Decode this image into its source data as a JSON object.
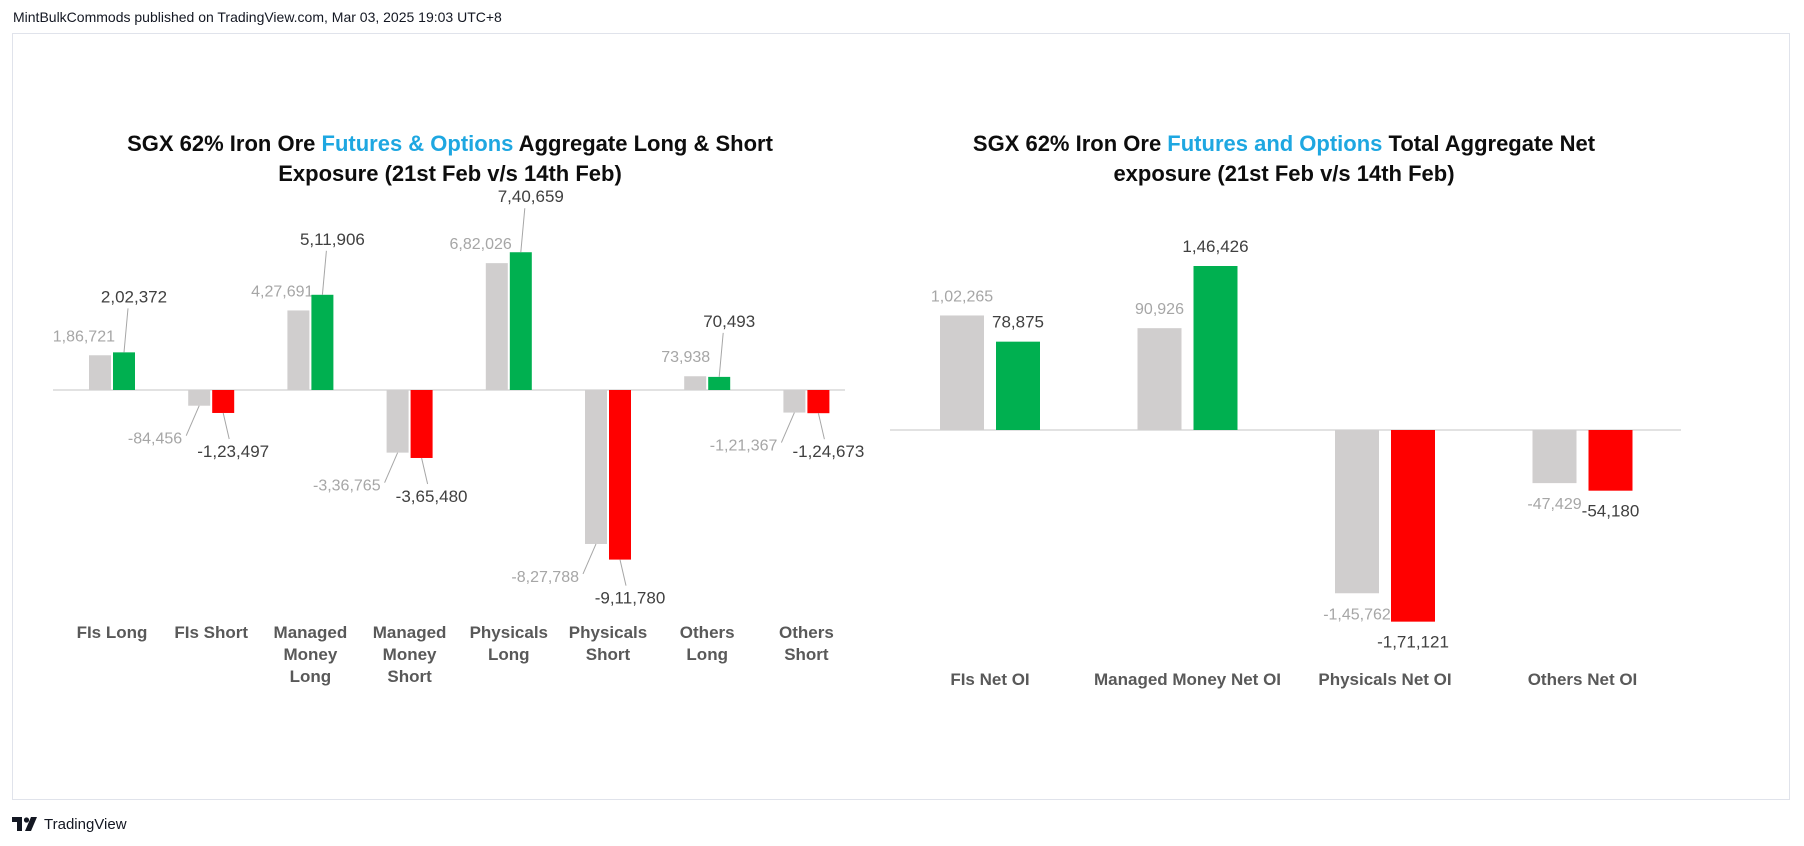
{
  "header": {
    "text": "MintBulkCommods published on TradingView.com, Mar 03, 2025 19:03 UTC+8"
  },
  "footer": {
    "brand": "TradingView",
    "logo_icon": "tradingview-logo-icon"
  },
  "colors": {
    "prev": "#d0cece",
    "positive": "#00b050",
    "negative": "#ff0000",
    "highlight": "#1ea7e1",
    "axis": "#d9d9d9"
  },
  "chart_data": [
    {
      "type": "bar",
      "title": {
        "line1_pre": "SGX 62% Iron Ore ",
        "line1_highlight": "Futures & Options",
        "line1_post": " Aggregate Long & Short",
        "line2": "Exposure (21st Feb v/s 14th Feb)"
      },
      "categories": [
        "FIs Long",
        "FIs Short",
        "Managed Money Long",
        "Managed Money Short",
        "Physicals Long",
        "Physicals Short",
        "Others Long",
        "Others Short"
      ],
      "category_lines": [
        [
          "FIs Long"
        ],
        [
          "FIs Short"
        ],
        [
          "Managed",
          "Money",
          "Long"
        ],
        [
          "Managed",
          "Money",
          "Short"
        ],
        [
          "Physicals",
          "Long"
        ],
        [
          "Physicals",
          "Short"
        ],
        [
          "Others",
          "Long"
        ],
        [
          "Others",
          "Short"
        ]
      ],
      "series": [
        {
          "values": [
            186721,
            -84456,
            427691,
            -336765,
            682026,
            -827788,
            73938,
            -121367
          ],
          "labels": [
            "1,86,721",
            "-84,456",
            "4,27,691",
            "-3,36,765",
            "6,82,026",
            "-8,27,788",
            "73,938",
            "-1,21,367"
          ]
        },
        {
          "values": [
            202372,
            -123497,
            511906,
            -365480,
            740659,
            -911780,
            70493,
            -124673
          ],
          "labels": [
            "2,02,372",
            "-1,23,497",
            "5,11,906",
            "-3,65,480",
            "7,40,659",
            "-9,11,780",
            "70,493",
            "-1,24,673"
          ]
        }
      ],
      "xlabel": "",
      "ylabel": ""
    },
    {
      "type": "bar",
      "title": {
        "line1_pre": "SGX 62% Iron Ore ",
        "line1_highlight": "Futures and Options",
        "line1_post": " Total Aggregate Net",
        "line2": "exposure (21st Feb v/s 14th Feb)"
      },
      "categories": [
        "FIs Net OI",
        "Managed Money Net OI",
        "Physicals Net OI",
        "Others Net OI"
      ],
      "category_lines": [
        [
          "FIs Net OI"
        ],
        [
          "Managed Money Net OI"
        ],
        [
          "Physicals Net OI"
        ],
        [
          "Others Net OI"
        ]
      ],
      "series": [
        {
          "values": [
            102265,
            90926,
            -145762,
            -47429
          ],
          "labels": [
            "1,02,265",
            "90,926",
            "-1,45,762",
            "-47,429"
          ]
        },
        {
          "values": [
            78875,
            146426,
            -171121,
            -54180
          ],
          "labels": [
            "78,875",
            "1,46,426",
            "-1,71,121",
            "-54,180"
          ]
        }
      ],
      "xlabel": "",
      "ylabel": ""
    }
  ]
}
